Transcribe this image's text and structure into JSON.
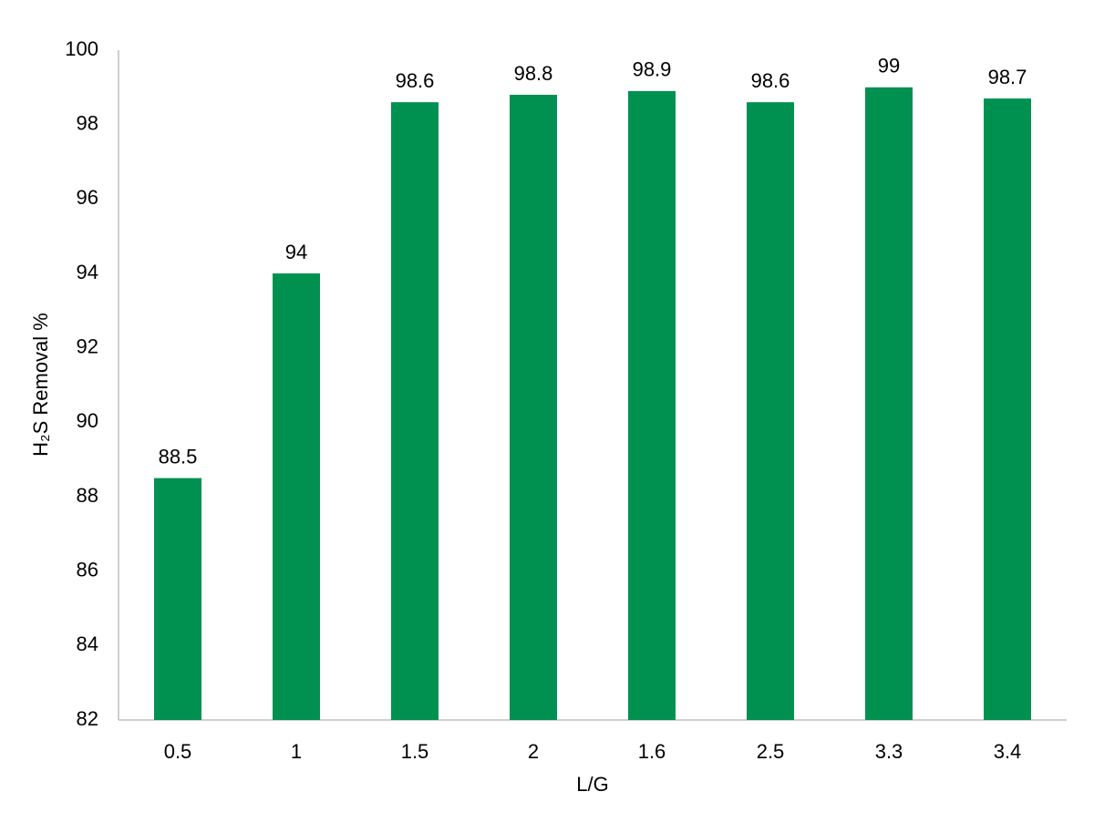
{
  "chart_data": {
    "type": "bar",
    "x_label": "L/G",
    "y_label": "H₂S Removal %",
    "categories": [
      "0.5",
      "1",
      "1.5",
      "2",
      "1.6",
      "2.5",
      "3.3",
      "3.4"
    ],
    "values": [
      88.5,
      94,
      98.6,
      98.8,
      98.9,
      98.6,
      99,
      98.7
    ],
    "color": "#009150",
    "ylim": [
      82,
      100
    ],
    "yticks": [
      82,
      84,
      86,
      88,
      90,
      92,
      94,
      96,
      98,
      100
    ],
    "grid": false
  }
}
